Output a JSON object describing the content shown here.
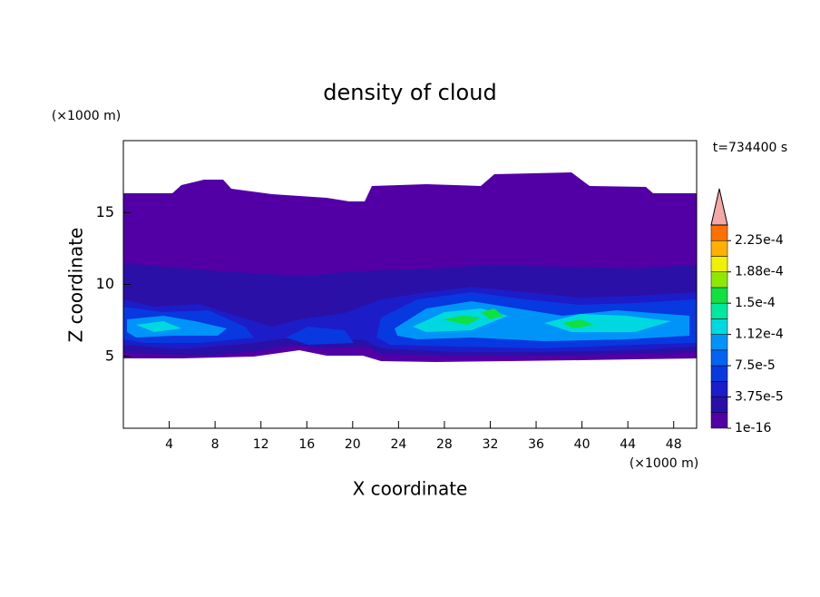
{
  "chart_data": {
    "type": "contour",
    "title": "density of cloud",
    "x_label": "X coordinate",
    "y_label": "Z coordinate",
    "x_unit": "(×1000 m)",
    "y_unit": "(×1000 m)",
    "time_label": "t=734400 s",
    "xlim": [
      0,
      50
    ],
    "ylim": [
      0,
      20
    ],
    "xticks": [
      4,
      8,
      12,
      16,
      20,
      24,
      28,
      32,
      36,
      40,
      44,
      48
    ],
    "yticks": [
      5,
      10,
      15
    ],
    "colorbar": {
      "levels": [
        1e-16,
        1.875e-05,
        3.75e-05,
        5.625e-05,
        7.5e-05,
        9.375e-05,
        0.0001125,
        0.00013125,
        0.00015,
        0.00016875,
        0.0001875,
        0.00020625,
        0.000225,
        0.00024375
      ],
      "colors": [
        "#5200a6",
        "#2a10a6",
        "#1c1cc8",
        "#0838e0",
        "#0064f0",
        "#0094f8",
        "#00d8e0",
        "#00e8a0",
        "#10e040",
        "#90e800",
        "#f0f000",
        "#ffb000",
        "#ff7000"
      ],
      "extend_color": "#f4a8a8",
      "ticks": [
        {
          "value": 1e-16,
          "label": "1e-16"
        },
        {
          "value": 3.75e-05,
          "label": "3.75e-5"
        },
        {
          "value": 7.5e-05,
          "label": "7.5e-5"
        },
        {
          "value": 0.0001125,
          "label": "1.12e-4"
        },
        {
          "value": 0.00015,
          "label": "1.5e-4"
        },
        {
          "value": 0.0001875,
          "label": "1.88e-4"
        },
        {
          "value": 0.000225,
          "label": "2.25e-4"
        }
      ]
    }
  }
}
